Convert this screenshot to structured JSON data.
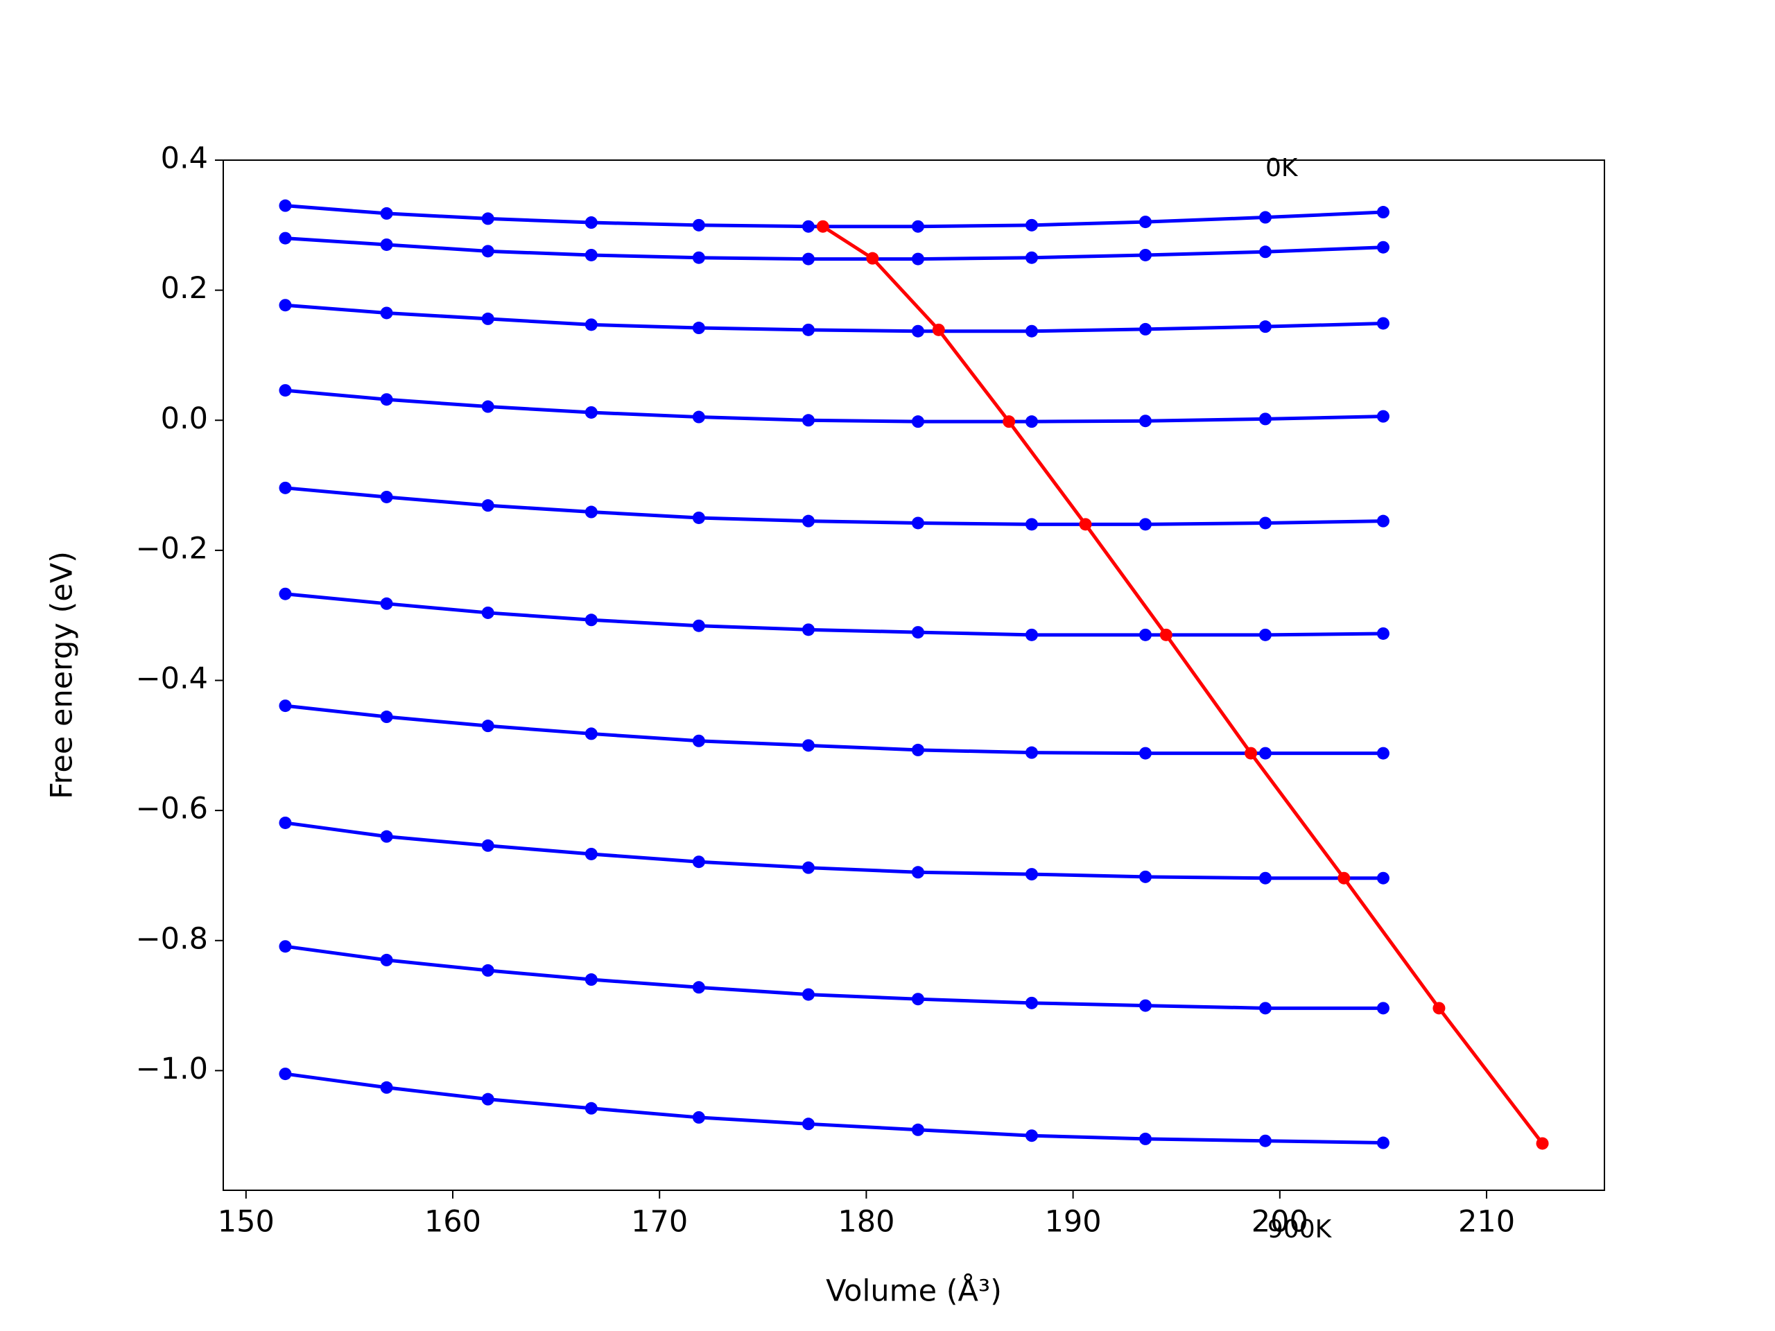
{
  "chart_data": {
    "type": "line",
    "x_label": "Volume (Å³)",
    "y_label": "Free energy (eV)",
    "x": [
      151.9,
      156.8,
      161.7,
      166.7,
      171.9,
      177.2,
      182.5,
      188.0,
      193.5,
      199.3,
      205.0
    ],
    "series": [
      {
        "color": "#0000ff",
        "values": [
          0.33,
          0.318,
          0.31,
          0.304,
          0.3,
          0.298,
          0.298,
          0.3,
          0.305,
          0.312,
          0.32
        ]
      },
      {
        "color": "#0000ff",
        "values": [
          0.28,
          0.27,
          0.26,
          0.254,
          0.25,
          0.248,
          0.248,
          0.25,
          0.254,
          0.259,
          0.266
        ]
      },
      {
        "color": "#0000ff",
        "values": [
          0.177,
          0.165,
          0.156,
          0.147,
          0.142,
          0.139,
          0.137,
          0.137,
          0.14,
          0.144,
          0.149
        ]
      },
      {
        "color": "#0000ff",
        "values": [
          0.046,
          0.032,
          0.021,
          0.012,
          0.005,
          0.0,
          -0.002,
          -0.002,
          -0.001,
          0.002,
          0.006
        ]
      },
      {
        "color": "#0000ff",
        "values": [
          -0.104,
          -0.118,
          -0.131,
          -0.141,
          -0.15,
          -0.155,
          -0.158,
          -0.16,
          -0.16,
          -0.158,
          -0.155
        ]
      },
      {
        "color": "#0000ff",
        "values": [
          -0.267,
          -0.282,
          -0.296,
          -0.307,
          -0.316,
          -0.322,
          -0.326,
          -0.33,
          -0.33,
          -0.33,
          -0.328
        ]
      },
      {
        "color": "#0000ff",
        "values": [
          -0.439,
          -0.456,
          -0.47,
          -0.482,
          -0.493,
          -0.5,
          -0.507,
          -0.511,
          -0.512,
          -0.512,
          -0.512
        ]
      },
      {
        "color": "#0000ff",
        "values": [
          -0.619,
          -0.64,
          -0.654,
          -0.667,
          -0.679,
          -0.688,
          -0.695,
          -0.698,
          -0.702,
          -0.704,
          -0.704
        ]
      },
      {
        "color": "#0000ff",
        "values": [
          -0.809,
          -0.83,
          -0.846,
          -0.86,
          -0.872,
          -0.883,
          -0.89,
          -0.896,
          -0.9,
          -0.904,
          -0.904
        ]
      },
      {
        "color": "#0000ff",
        "values": [
          -1.005,
          -1.026,
          -1.044,
          -1.058,
          -1.072,
          -1.082,
          -1.091,
          -1.1,
          -1.105,
          -1.108,
          -1.111
        ]
      },
      {
        "color": "#ff0000",
        "x": [
          177.9,
          180.3,
          183.5,
          186.9,
          190.6,
          194.5,
          198.6,
          203.1,
          207.7,
          212.7
        ],
        "values": [
          0.298,
          0.249,
          0.139,
          -0.002,
          -0.16,
          -0.33,
          -0.512,
          -0.704,
          -0.904,
          -1.112
        ]
      }
    ],
    "annotations": [
      {
        "text": "0K",
        "x": 199.3,
        "y": 0.386
      },
      {
        "text": "900K",
        "x": 199.4,
        "y": -1.246
      }
    ],
    "xlim": [
      148.9,
      215.7
    ],
    "ylim": [
      -1.184,
      0.4
    ],
    "xticks": [
      150,
      160,
      170,
      180,
      190,
      200,
      210
    ],
    "yticks": [
      {
        "value": -1.0,
        "label": "−1.0"
      },
      {
        "value": -0.8,
        "label": "−0.8"
      },
      {
        "value": -0.6,
        "label": "−0.6"
      },
      {
        "value": -0.4,
        "label": "−0.4"
      },
      {
        "value": -0.2,
        "label": "−0.2"
      },
      {
        "value": 0.0,
        "label": "0.0"
      },
      0.2,
      0.4
    ],
    "grid": false
  }
}
